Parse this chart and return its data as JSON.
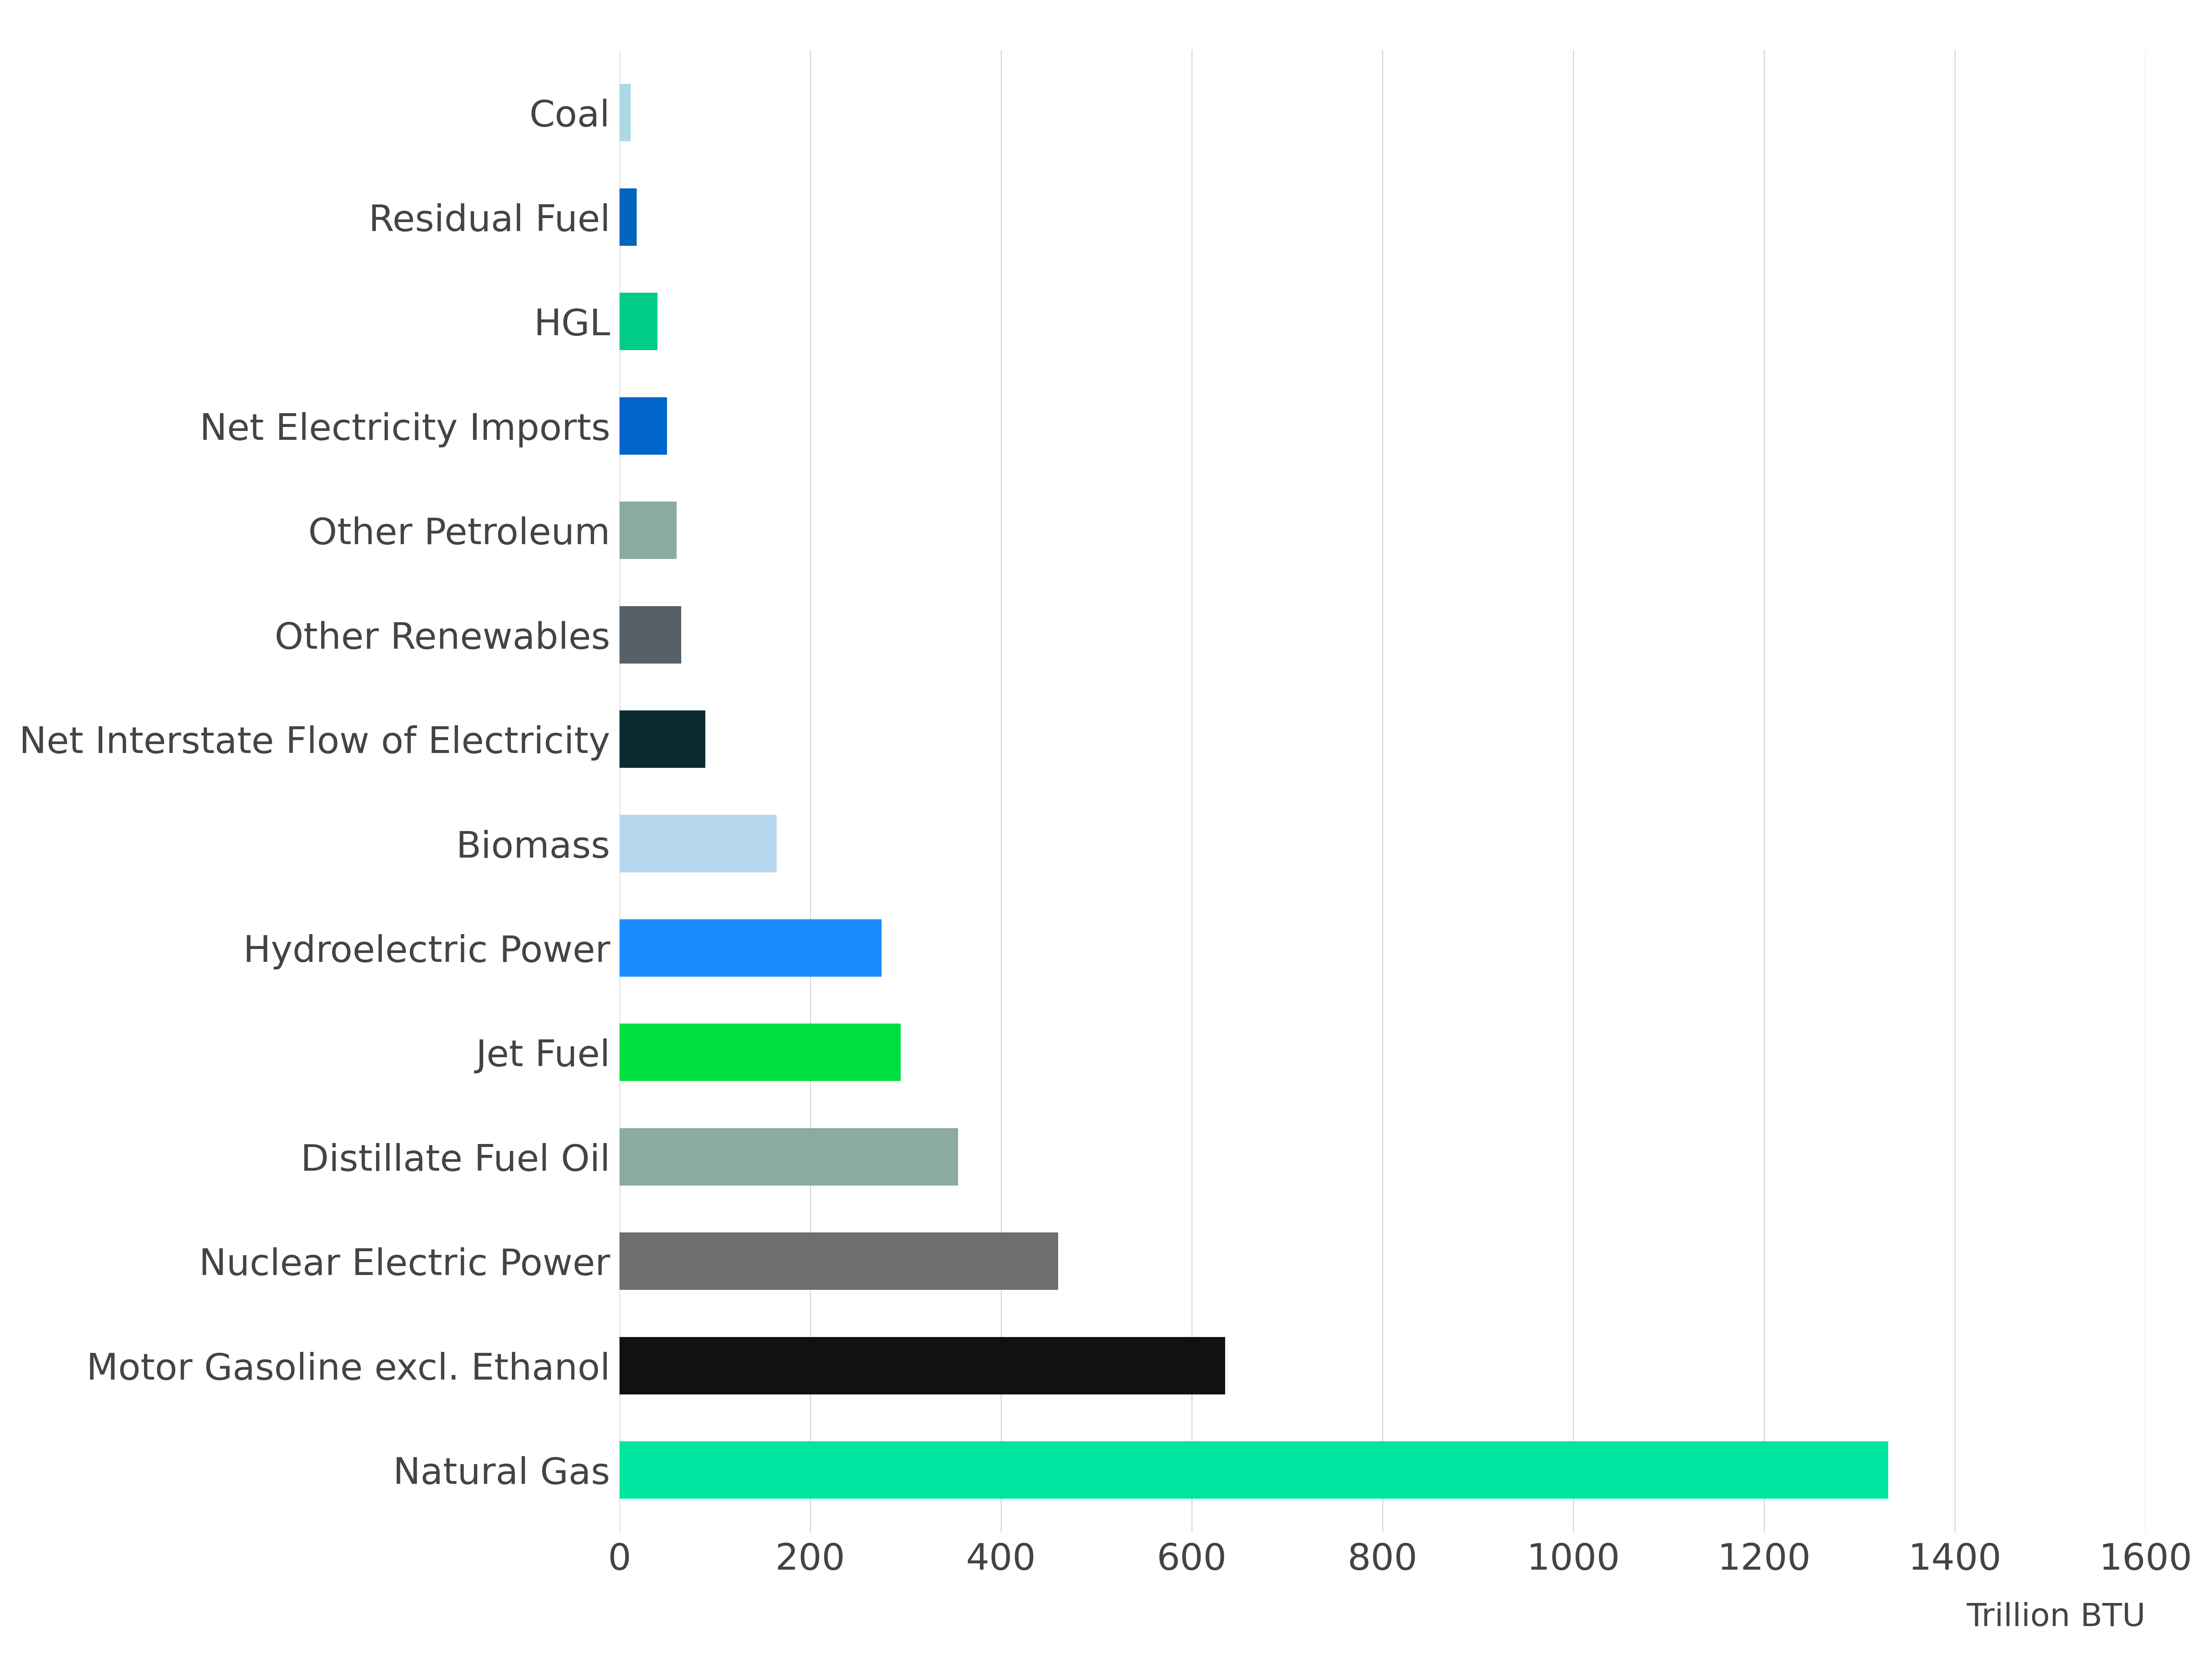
{
  "categories": [
    "Natural Gas",
    "Motor Gasoline excl. Ethanol",
    "Nuclear Electric Power",
    "Distillate Fuel Oil",
    "Jet Fuel",
    "Hydroelectric Power",
    "Biomass",
    "Net Interstate Flow of Electricity",
    "Other Renewables",
    "Other Petroleum",
    "Net Electricity Imports",
    "HGL",
    "Residual Fuel",
    "Coal"
  ],
  "values": [
    1330,
    635,
    460,
    355,
    295,
    275,
    165,
    90,
    65,
    60,
    50,
    40,
    18,
    12
  ],
  "colors": [
    "#00e5a0",
    "#111111",
    "#6e6e6e",
    "#8aab9e",
    "#00e040",
    "#1a8cff",
    "#b8d8f0",
    "#0a2a30",
    "#556068",
    "#8aab9e",
    "#0066cc",
    "#00cc88",
    "#0066bb",
    "#add8e6"
  ],
  "xlabel": "Trillion BTU",
  "xlim": [
    0,
    1600
  ],
  "xticks": [
    0,
    200,
    400,
    600,
    800,
    1000,
    1200,
    1400,
    1600
  ],
  "background_color": "#ffffff",
  "grid_color": "#d0d0d0",
  "bar_height": 0.55,
  "label_fontsize": 80,
  "tick_fontsize": 80,
  "xlabel_fontsize": 70,
  "label_color": "#444444",
  "tick_color": "#444444"
}
